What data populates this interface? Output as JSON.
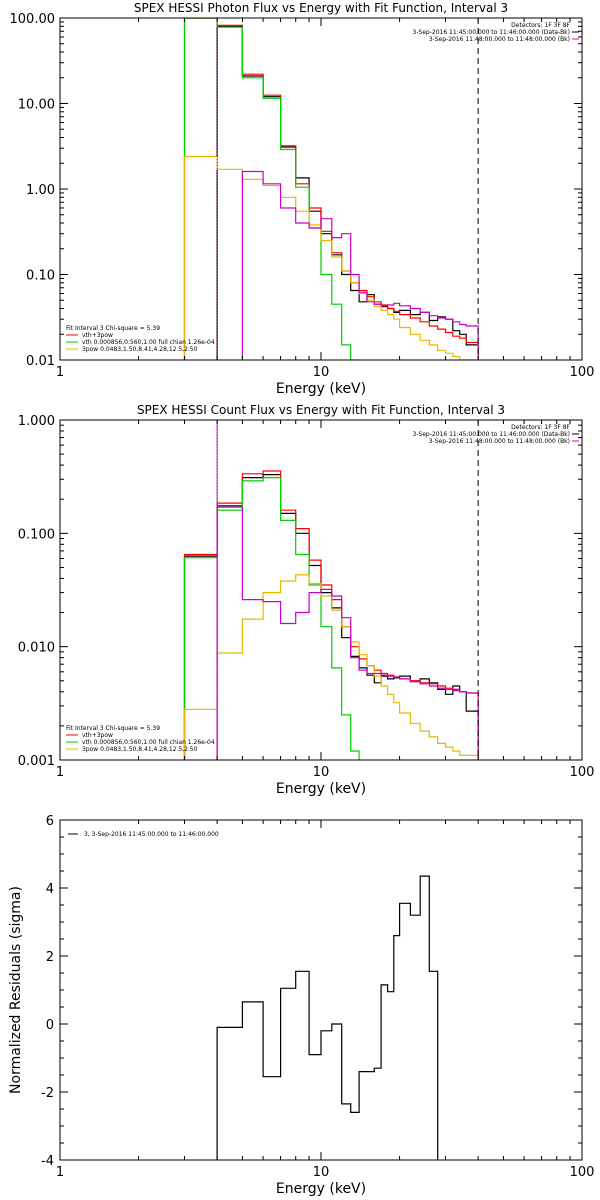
{
  "chart_data": [
    {
      "type": "line",
      "title": "SPEX HESSI Photon Flux vs Energy with Fit Function, Interval 3",
      "xlabel": "Energy (keV)",
      "ylabel": "",
      "xscale": "log",
      "yscale": "log",
      "xlim": [
        1,
        100
      ],
      "ylim": [
        0.01,
        100
      ],
      "xticks": [
        "1",
        "10",
        "100"
      ],
      "yticks": [
        "0.01",
        "0.10",
        "1.00",
        "10.00",
        "100.00"
      ],
      "header": [
        "Detectors: 1F 3F 8F",
        "3-Sep-2016 11:45:00.000 to 11:46:00.000 (Data-Bk)",
        "3-Sep-2016 11:48:00.000 to 11:48:00.000 (Bk)"
      ],
      "legend_title": "Fit Interval 3   Chi-square = 5.39",
      "legend": [
        {
          "label": "vth+3pow",
          "color": "#ff0000"
        },
        {
          "label": "vth 0.000856,0.560,1.00  full chian 1.26e-04",
          "color": "#00cc00"
        },
        {
          "label": "3pow 0.0483,1.50,8.41,4.28,12.5,2.50",
          "color": "#e6b800"
        }
      ],
      "vlines": [
        {
          "x": 4.0,
          "style": "dotted",
          "color": "#cc00cc"
        },
        {
          "x": 40,
          "style": "dashed",
          "color": "#000000"
        }
      ],
      "bin_edges": [
        3,
        4,
        5,
        6,
        7,
        8,
        9,
        10,
        11,
        12,
        13,
        14,
        15,
        16,
        17,
        18,
        19,
        20,
        22,
        24,
        26,
        28,
        30,
        32,
        34,
        36,
        40
      ],
      "series": [
        {
          "name": "Data-Bk",
          "color": "#000000",
          "values": [
            null,
            80,
            21,
            12,
            3.1,
            1.35,
            0.55,
            0.3,
            0.17,
            0.1,
            0.065,
            0.048,
            0.058,
            0.045,
            0.042,
            0.04,
            0.036,
            0.038,
            0.034,
            0.036,
            0.029,
            0.032,
            0.03,
            0.022,
            0.02,
            0.015
          ]
        },
        {
          "name": "vth+3pow",
          "color": "#ff0000",
          "values": [
            120,
            82,
            22,
            12.5,
            3.2,
            1.15,
            0.6,
            0.32,
            0.18,
            0.11,
            0.08,
            0.065,
            0.055,
            0.048,
            0.044,
            0.04,
            0.037,
            0.034,
            0.031,
            0.028,
            0.025,
            0.023,
            0.021,
            0.019,
            0.018,
            0.016
          ]
        },
        {
          "name": "vth",
          "color": "#00cc00",
          "values": [
            118,
            78,
            20,
            11.5,
            2.9,
            1.05,
            0.35,
            0.1,
            0.045,
            0.015,
            0.004,
            null,
            null,
            null,
            null,
            null,
            null,
            null,
            null,
            null,
            null,
            null,
            null,
            null,
            null,
            null
          ]
        },
        {
          "name": "3pow",
          "color": "#e6b800",
          "values": [
            2.4,
            1.7,
            1.3,
            1.1,
            0.8,
            0.55,
            0.38,
            0.25,
            0.16,
            0.11,
            0.08,
            0.06,
            0.05,
            0.042,
            0.038,
            0.034,
            0.03,
            0.024,
            0.02,
            0.017,
            0.015,
            0.013,
            0.012,
            0.011,
            0.01,
            0.009
          ]
        },
        {
          "name": "Bk",
          "color": "#cc00cc",
          "values": [
            null,
            null,
            1.6,
            1.15,
            0.6,
            0.4,
            0.35,
            0.45,
            0.27,
            0.3,
            0.1,
            0.062,
            0.048,
            0.045,
            0.043,
            0.044,
            0.046,
            0.043,
            0.04,
            0.036,
            0.033,
            0.031,
            0.03,
            0.028,
            0.026,
            0.025
          ]
        }
      ]
    },
    {
      "type": "line",
      "title": "SPEX HESSI Count Flux vs Energy with Fit Function, Interval 3",
      "xlabel": "Energy (keV)",
      "ylabel": "",
      "xscale": "log",
      "yscale": "log",
      "xlim": [
        1,
        100
      ],
      "ylim": [
        0.001,
        1
      ],
      "xticks": [
        "1",
        "10",
        "100"
      ],
      "yticks": [
        "0.001",
        "0.010",
        "0.100",
        "1.000"
      ],
      "header": [
        "Detectors: 1F 3F 8F",
        "3-Sep-2016 11:45:00.000 to 11:46:00.000 (Data-Bk)",
        "3-Sep-2016 11:48:00.000 to 11:48:00.000 (Bk)"
      ],
      "legend_title": "Fit Interval 3   Chi-square = 5.39",
      "legend": [
        {
          "label": "vth+3pow",
          "color": "#ff0000"
        },
        {
          "label": "vth 0.000856,0.560,1.00  full chian 1.26e-04",
          "color": "#00cc00"
        },
        {
          "label": "3pow 0.0483,1.50,8.41,4.28,12.5,2.50",
          "color": "#e6b800"
        }
      ],
      "vlines": [
        {
          "x": 4.0,
          "style": "dotted",
          "color": "#000000"
        },
        {
          "x": 4.0,
          "style": "solid",
          "color": "#cc00cc"
        },
        {
          "x": 40,
          "style": "dashed",
          "color": "#000000"
        }
      ],
      "bin_edges": [
        3,
        4,
        5,
        6,
        7,
        8,
        9,
        10,
        11,
        12,
        13,
        14,
        15,
        16,
        17,
        18,
        19,
        20,
        22,
        24,
        26,
        28,
        30,
        32,
        34,
        36,
        40
      ],
      "series": [
        {
          "name": "Data-Bk",
          "color": "#000000",
          "values": [
            0.063,
            0.175,
            0.31,
            0.33,
            0.15,
            0.1,
            0.052,
            0.03,
            0.022,
            0.012,
            0.0082,
            0.0065,
            0.0056,
            0.0048,
            0.0055,
            0.0052,
            0.0053,
            0.0055,
            0.005,
            0.0052,
            0.0048,
            0.0042,
            0.0038,
            0.0045,
            0.004,
            0.0027
          ]
        },
        {
          "name": "vth+3pow",
          "color": "#ff0000",
          "values": [
            0.065,
            0.185,
            0.335,
            0.355,
            0.16,
            0.11,
            0.058,
            0.035,
            0.026,
            0.015,
            0.01,
            0.0078,
            0.0068,
            0.0062,
            0.0058,
            0.0056,
            0.0054,
            0.0052,
            0.005,
            0.0048,
            0.0047,
            0.0045,
            0.0043,
            0.0042,
            0.004,
            0.0039
          ]
        },
        {
          "name": "vth",
          "color": "#00cc00",
          "values": [
            0.061,
            0.16,
            0.29,
            0.31,
            0.13,
            0.065,
            0.035,
            0.015,
            0.0065,
            0.0025,
            0.0012,
            null,
            null,
            null,
            null,
            null,
            null,
            null,
            null,
            null,
            null,
            null,
            null,
            null,
            null,
            null
          ]
        },
        {
          "name": "3pow",
          "color": "#e6b800",
          "values": [
            0.0028,
            0.0088,
            0.0175,
            0.03,
            0.038,
            0.043,
            0.036,
            0.028,
            0.021,
            0.015,
            0.011,
            0.0085,
            0.0068,
            0.0055,
            0.0045,
            0.0038,
            0.0032,
            0.0026,
            0.0021,
            0.0018,
            0.0016,
            0.0014,
            0.0013,
            0.0012,
            0.0011,
            0.0011
          ]
        },
        {
          "name": "Bk",
          "color": "#cc00cc",
          "values": [
            null,
            0.17,
            0.026,
            0.025,
            0.016,
            0.02,
            0.03,
            0.032,
            0.028,
            0.018,
            0.008,
            0.0062,
            0.0058,
            0.0058,
            0.0056,
            0.0055,
            0.0054,
            0.0052,
            0.0049,
            0.0047,
            0.0045,
            0.0043,
            0.0042,
            0.0041,
            0.004,
            0.0039
          ]
        }
      ]
    },
    {
      "type": "line",
      "title": "",
      "xlabel": "Energy (keV)",
      "ylabel": "Normalized Residuals (sigma)",
      "xscale": "log",
      "yscale": "linear",
      "xlim": [
        1,
        100
      ],
      "ylim": [
        -4,
        6
      ],
      "xticks": [
        "1",
        "10",
        "100"
      ],
      "yticks": [
        "-4",
        "-2",
        "0",
        "2",
        "4",
        "6"
      ],
      "legend": [
        {
          "label": "3,  3-Sep-2016 11:45:00.000 to 11:46:00.000",
          "color": "#000000"
        }
      ],
      "bin_edges": [
        4,
        5,
        6,
        7,
        8,
        9,
        10,
        11,
        12,
        13,
        14,
        15,
        16,
        17,
        18,
        19,
        20,
        22,
        24,
        26,
        28,
        30,
        32,
        34,
        36,
        40
      ],
      "series": [
        {
          "name": "Residuals",
          "color": "#000000",
          "values": [
            -0.1,
            0.65,
            -1.55,
            1.05,
            1.55,
            -0.9,
            -0.2,
            0.0,
            -2.35,
            -2.6,
            -1.4,
            -1.4,
            -1.3,
            1.15,
            0.95,
            2.6,
            3.55,
            3.2,
            4.35,
            1.55,
            null,
            null,
            null,
            null,
            null
          ]
        }
      ]
    }
  ]
}
